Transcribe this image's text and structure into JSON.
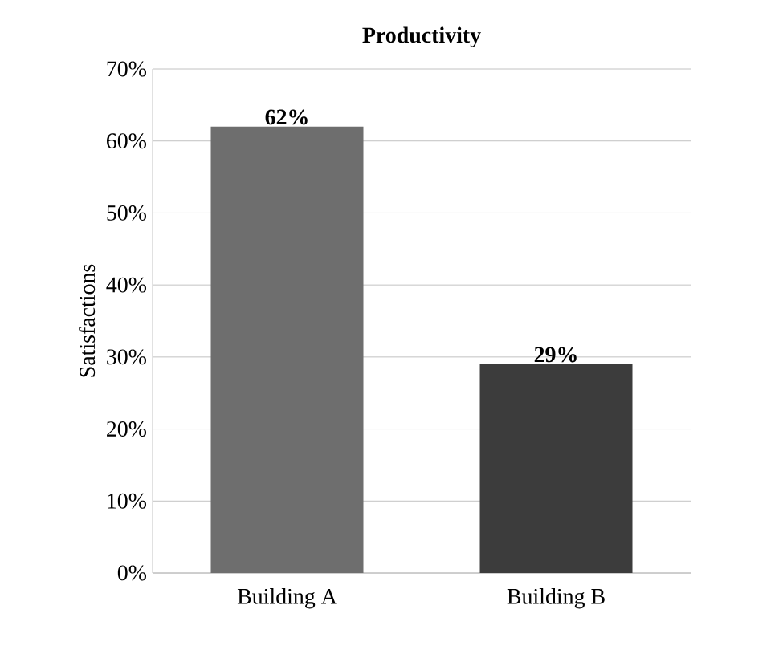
{
  "chart_data": {
    "type": "bar",
    "title": "Productivity",
    "ylabel": "Satisfactions",
    "categories": [
      "Building A",
      "Building B"
    ],
    "values": [
      62,
      29
    ],
    "colors": [
      "#6e6e6e",
      "#3c3c3c"
    ],
    "value_labels": [
      "62%",
      "29%"
    ],
    "ylim": [
      0,
      70
    ],
    "yticks": [
      {
        "value": 0,
        "label": "0%"
      },
      {
        "value": 10,
        "label": "10%"
      },
      {
        "value": 20,
        "label": "20%"
      },
      {
        "value": 30,
        "label": "30%"
      },
      {
        "value": 40,
        "label": "40%"
      },
      {
        "value": 50,
        "label": "50%"
      },
      {
        "value": 60,
        "label": "60%"
      },
      {
        "value": 70,
        "label": "70%"
      }
    ],
    "grid": "y"
  }
}
